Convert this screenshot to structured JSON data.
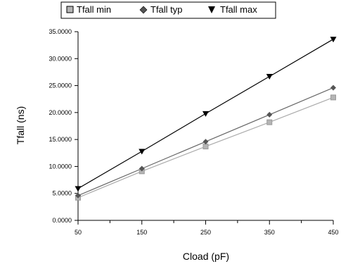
{
  "chart_data": {
    "type": "line",
    "xlabel": "Cload (pF)",
    "ylabel": "Tfall (ns)",
    "x": [
      50,
      150,
      250,
      350,
      450
    ],
    "xlim": [
      50,
      450
    ],
    "ylim": [
      0,
      35
    ],
    "x_ticks": [
      50,
      150,
      250,
      350,
      450
    ],
    "x_tick_labels": [
      "50",
      "150",
      "250",
      "350",
      "450"
    ],
    "y_ticks": [
      0,
      5,
      10,
      15,
      20,
      25,
      30,
      35
    ],
    "y_tick_labels": [
      "0.0000",
      "5.0000",
      "10.0000",
      "15.0000",
      "20.0000",
      "25.0000",
      "30.0000",
      "35.0000"
    ],
    "grid": false,
    "legend_position": "top",
    "series": [
      {
        "name": "Tfall min",
        "marker": "square",
        "color": "#aaaaaa",
        "marker_color": "#999999",
        "values": [
          4.2,
          9.1,
          13.7,
          18.2,
          22.8
        ]
      },
      {
        "name": "Tfall typ",
        "marker": "diamond",
        "color": "#666666",
        "marker_color": "#555555",
        "values": [
          4.6,
          9.6,
          14.6,
          19.6,
          24.6
        ]
      },
      {
        "name": "Tfall max",
        "marker": "triangle-down",
        "color": "#000000",
        "marker_color": "#000000",
        "values": [
          5.9,
          12.8,
          19.8,
          26.7,
          33.6
        ]
      }
    ]
  }
}
